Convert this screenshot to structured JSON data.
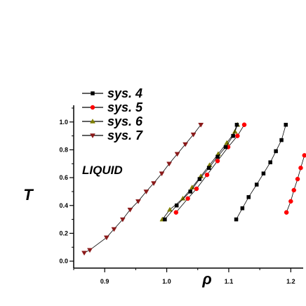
{
  "chart_data": {
    "type": "line",
    "title": "",
    "xlabel": "ρ",
    "ylabel": "T",
    "xlim": [
      0.85,
      1.22
    ],
    "ylim": [
      -0.05,
      1.12
    ],
    "x_ticks": [
      0.9,
      1.0,
      1.1,
      1.2
    ],
    "x_tick_labels": [
      "0.9",
      "1.0",
      "1.1",
      "1.2"
    ],
    "y_ticks": [
      0.0,
      0.2,
      0.4,
      0.6,
      0.8,
      1.0
    ],
    "y_tick_labels": [
      "0.0",
      "0.2",
      "0.4",
      "0.6",
      "0.8",
      "1.0"
    ],
    "grid": false,
    "legend_position": "top-left",
    "annotation": "LIQUID",
    "series": [
      {
        "name": "sys. 7",
        "color": "#8b1a1a",
        "marker": "triangle-down",
        "segments": [
          [
            [
              0.867,
              0.06
            ],
            [
              0.876,
              0.08
            ],
            [
              0.903,
              0.17
            ],
            [
              0.915,
              0.23
            ],
            [
              0.929,
              0.3
            ],
            [
              0.941,
              0.37
            ],
            [
              0.954,
              0.43
            ],
            [
              0.967,
              0.5
            ],
            [
              0.979,
              0.56
            ],
            [
              0.992,
              0.63
            ],
            [
              1.004,
              0.7
            ],
            [
              1.017,
              0.77
            ],
            [
              1.03,
              0.84
            ],
            [
              1.043,
              0.91
            ],
            [
              1.055,
              0.98
            ]
          ]
        ]
      },
      {
        "name": "sys. 6",
        "color": "#808000",
        "marker": "triangle-up",
        "segments": [
          [
            [
              0.993,
              0.3
            ],
            [
              1.005,
              0.37
            ],
            [
              1.026,
              0.45
            ],
            [
              1.041,
              0.53
            ],
            [
              1.055,
              0.61
            ],
            [
              1.069,
              0.69
            ],
            [
              1.083,
              0.77
            ],
            [
              1.097,
              0.85
            ],
            [
              1.11,
              0.93
            ],
            [
              1.114,
              0.98
            ]
          ]
        ]
      },
      {
        "name": "sys. 5",
        "color": "#ff0000",
        "marker": "circle",
        "segments": [
          [
            [
              1.015,
              0.35
            ],
            [
              1.034,
              0.45
            ],
            [
              1.048,
              0.52
            ],
            [
              1.065,
              0.62
            ],
            [
              1.082,
              0.72
            ],
            [
              1.099,
              0.82
            ],
            [
              1.114,
              0.9
            ],
            [
              1.125,
              0.98
            ]
          ],
          [
            [
              1.193,
              0.35
            ],
            [
              1.2,
              0.43
            ],
            [
              1.205,
              0.51
            ],
            [
              1.211,
              0.59
            ],
            [
              1.216,
              0.67
            ],
            [
              1.222,
              0.76
            ]
          ]
        ]
      },
      {
        "name": "sys. 4",
        "color": "#000000",
        "marker": "square",
        "segments": [
          [
            [
              0.997,
              0.3
            ],
            [
              1.016,
              0.4
            ],
            [
              1.038,
              0.5
            ],
            [
              1.053,
              0.59
            ],
            [
              1.068,
              0.67
            ],
            [
              1.082,
              0.75
            ],
            [
              1.095,
              0.82
            ],
            [
              1.107,
              0.9
            ],
            [
              1.113,
              0.98
            ]
          ],
          [
            [
              1.112,
              0.3
            ],
            [
              1.122,
              0.38
            ],
            [
              1.132,
              0.46
            ],
            [
              1.145,
              0.55
            ],
            [
              1.156,
              0.63
            ],
            [
              1.167,
              0.71
            ],
            [
              1.176,
              0.79
            ],
            [
              1.185,
              0.87
            ],
            [
              1.192,
              0.98
            ]
          ]
        ]
      }
    ]
  }
}
